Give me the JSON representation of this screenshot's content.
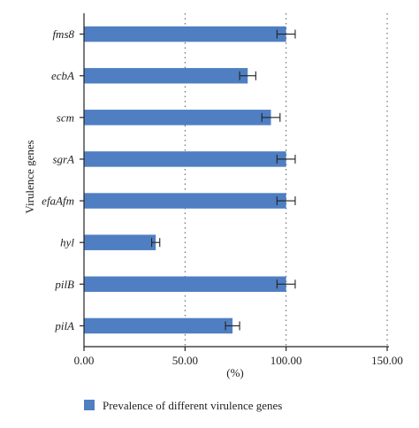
{
  "chart_data": {
    "type": "bar",
    "orientation": "horizontal",
    "title": "",
    "xlabel": "(%)",
    "ylabel": "Virulence genes",
    "xlim": [
      0,
      150
    ],
    "xticks": [
      "0.00",
      "50.00",
      "100.00",
      "150.00"
    ],
    "xtick_values": [
      0,
      50,
      100,
      150
    ],
    "grid": "vertical dotted at 50, 100, 150",
    "legend_position": "bottom-left",
    "color": "#4f7fc2",
    "categories": [
      "fms8",
      "ecbA",
      "scm",
      "sgrA",
      "efaAfm",
      "hyl",
      "pilB",
      "pilA"
    ],
    "series": [
      {
        "name": "Prevalence of different virulence genes",
        "values": [
          100,
          81,
          92.5,
          100,
          100,
          35.5,
          100,
          73.5
        ],
        "error": [
          4.5,
          4,
          4.5,
          4.5,
          4.5,
          2,
          4.5,
          3.5
        ]
      }
    ]
  }
}
